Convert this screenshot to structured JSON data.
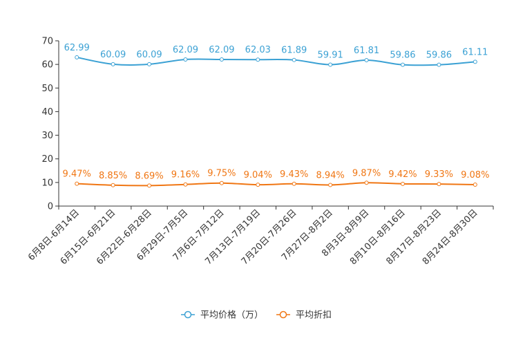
{
  "chart_data": {
    "type": "line",
    "categories": [
      "6月8日-6月14日",
      "6月15日-6月21日",
      "6月22日-6月28日",
      "6月29日-7月5日",
      "7月6日-7月12日",
      "7月13日-7月19日",
      "7月20日-7月26日",
      "7月27日-8月2日",
      "8月3日-8月9日",
      "8月10日-8月16日",
      "8月17日-8月23日",
      "8月24日-8月30日"
    ],
    "series": [
      {
        "name": "平均价格（万）",
        "color": "#3ba1d4",
        "values": [
          62.99,
          60.09,
          60.09,
          62.09,
          62.09,
          62.03,
          61.89,
          59.91,
          61.81,
          59.86,
          59.86,
          61.11
        ],
        "labels": [
          "62.99",
          "60.09",
          "60.09",
          "62.09",
          "62.09",
          "62.03",
          "61.89",
          "59.91",
          "61.81",
          "59.86",
          "59.86",
          "61.11"
        ]
      },
      {
        "name": "平均折扣",
        "color": "#f07613",
        "values": [
          9.47,
          8.85,
          8.69,
          9.16,
          9.75,
          9.04,
          9.43,
          8.94,
          9.87,
          9.42,
          9.33,
          9.08
        ],
        "labels": [
          "9.47%",
          "8.85%",
          "8.69%",
          "9.16%",
          "9.75%",
          "9.04%",
          "9.43%",
          "8.94%",
          "9.87%",
          "9.42%",
          "9.33%",
          "9.08%"
        ]
      }
    ],
    "yticks": [
      "0",
      "10",
      "20",
      "30",
      "40",
      "50",
      "60",
      "70"
    ],
    "ylim": [
      0,
      70
    ],
    "title": "",
    "xlabel": "",
    "ylabel": "",
    "legend_position": "bottom-center"
  }
}
